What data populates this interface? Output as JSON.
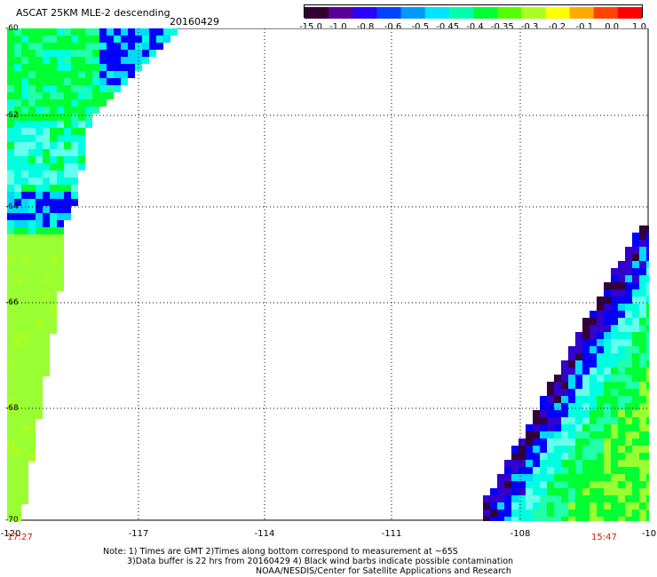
{
  "header": {
    "title": "ASCAT 25KM MLE-2 descending",
    "date": "20160429"
  },
  "colorbar": {
    "labels": [
      "-15.0",
      "-1.0",
      "-0.8",
      "-0.6",
      "-0.5",
      "-0.45",
      "-0.4",
      "-0.35",
      "-0.3",
      "-0.2",
      "-0.1",
      "0.0",
      "1.0"
    ],
    "colors": [
      "#330033",
      "#5a0099",
      "#2a00ff",
      "#0044ff",
      "#0099ff",
      "#00e5ff",
      "#00ffaa",
      "#00ff33",
      "#55ff00",
      "#aaff22",
      "#ffff00",
      "#ffaa00",
      "#ff4400",
      "#ff0000"
    ]
  },
  "map": {
    "lat_labels": [
      "-60",
      "-62",
      "-64",
      "-66",
      "-68",
      "-70"
    ],
    "lon_labels": [
      "-120",
      "-117",
      "-114",
      "-111",
      "-108",
      "-10"
    ],
    "times": {
      "left": "17:27",
      "right": "15:47"
    },
    "fill_colors": {
      "green": "#00ff33",
      "lime": "#99ff33",
      "cyan": "#00ffe0",
      "light_cyan": "#66ffee",
      "blue": "#0000ff",
      "navy": "#3300cc",
      "dark": "#33003a",
      "aqua": "#00d8ff",
      "mint": "#22ffaa",
      "yellowgreen": "#aaff22"
    }
  },
  "notes": {
    "line1": "Note: 1) Times are GMT 2)Times along bottom correspond to measurement at ~65S",
    "line2": "3)Data buffer is 22 hrs from 20160429 4) Black wind barbs indicate possible contamination",
    "line3": "NOAA/NESDIS/Center for Satellite Applications and Research"
  }
}
